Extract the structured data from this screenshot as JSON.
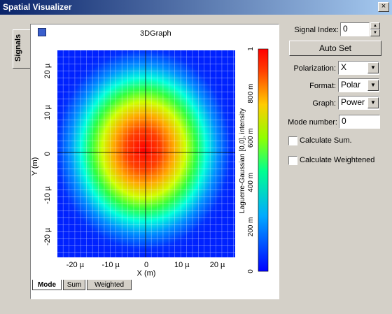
{
  "window": {
    "title": "Spatial Visualizer",
    "close_glyph": "×"
  },
  "side_tab": {
    "label": "Signals"
  },
  "graph": {
    "title": "3DGraph",
    "x_axis_label": "X (m)",
    "y_axis_label": "Y (m)",
    "colorbar_label": "Laguerre-Gaussian [0,0], intensity",
    "x_ticks": [
      "-20 µ",
      "-10 µ",
      "0",
      "10 µ",
      "20 µ"
    ],
    "y_ticks": [
      "20 µ",
      "10 µ",
      "0",
      "-10 µ",
      "-20 µ"
    ],
    "colorbar_ticks": [
      "1",
      "800 m",
      "600 m",
      "400 m",
      "200 m",
      "0"
    ]
  },
  "bottom_tabs": [
    "Mode",
    "Sum",
    "Weighted"
  ],
  "controls": {
    "signal_index_label": "Signal Index:",
    "signal_index_value": "0",
    "autoset_label": "Auto Set",
    "polarization_label": "Polarization:",
    "polarization_value": "X",
    "format_label": "Format:",
    "format_value": "Polar",
    "graph_label": "Graph:",
    "graph_value": "Power",
    "mode_number_label": "Mode number:",
    "mode_number_value": "0",
    "calc_sum_label": "Calculate Sum.",
    "calc_weighted_label": "Calculate Weightened",
    "calc_sum_checked": false,
    "calc_weighted_checked": false
  },
  "chart_data": {
    "type": "heatmap",
    "xlabel": "X (m)",
    "ylabel": "Y (m)",
    "xlim": [
      -25,
      25
    ],
    "ylim": [
      -25,
      25
    ],
    "units": "µm",
    "x_ticks": [
      "-20 µ",
      "-10 µ",
      "0",
      "10 µ",
      "20 µ"
    ],
    "y_ticks": [
      "20 µ",
      "10 µ",
      "0",
      "-10 µ",
      "-20 µ"
    ],
    "colorbar": {
      "label": "Laguerre-Gaussian [0,0], intensity",
      "range": [
        0,
        1
      ],
      "ticks": [
        "0",
        "200 m",
        "400 m",
        "600 m",
        "800 m",
        "1"
      ]
    },
    "peak": {
      "x": 0,
      "y": 0,
      "value": 1
    },
    "beam_waist_um": 10,
    "grid": true
  }
}
